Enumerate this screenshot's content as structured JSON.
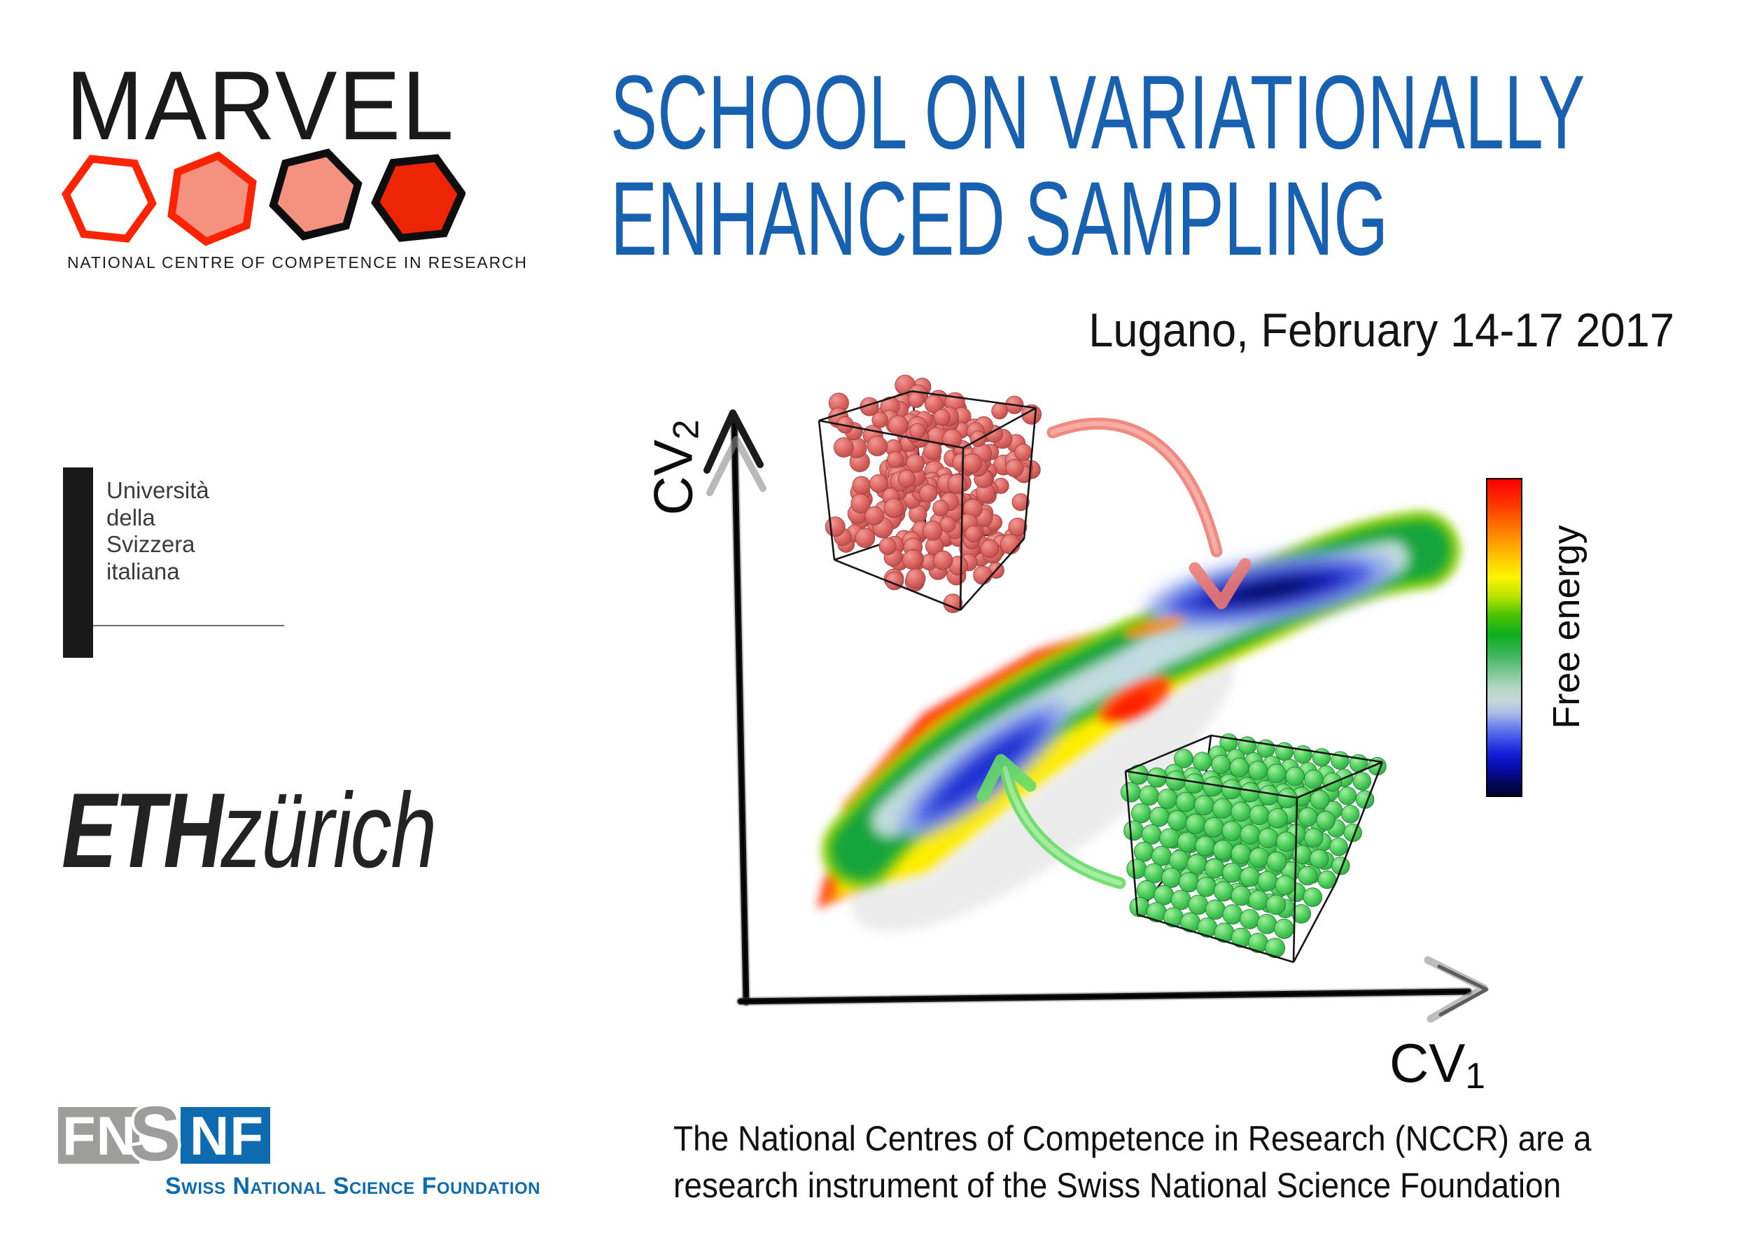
{
  "marvel": {
    "wordmark": "MARVEL",
    "caption": "NATIONAL CENTRE OF COMPETENCE IN RESEARCH",
    "hex_outline_red": "#fb2301",
    "hex_outline_black": "#0e0e0e",
    "hex_fill_white": "#ffffff",
    "hex_fill_salmon": "#f5917f",
    "hex_fill_red": "#ee2504"
  },
  "title": {
    "line1": "SCHOOL ON VARIATIONALLY",
    "line2": "ENHANCED SAMPLING",
    "color": "#1761b0"
  },
  "event": {
    "location_date": "Lugano, February 14-17 2017"
  },
  "usi": {
    "lines": [
      "Università",
      "della",
      "Svizzera",
      "italiana"
    ]
  },
  "eth": {
    "bold": "ETH",
    "light": "zürich"
  },
  "snsf": {
    "gray_letters": "FN",
    "overlap_letter": "S",
    "blue_letters": "NF",
    "name": "Swiss National Science Foundation",
    "blue": "#0f6bb0",
    "gray": "#9d9d9c"
  },
  "footnote": {
    "line1": "The National Centres of Competence in Research (NCCR) are a",
    "line2": "research instrument of the Swiss National Science Foundation"
  },
  "figure": {
    "y_label": "CV",
    "y_sub": "2",
    "x_label": "CV",
    "x_sub": "1",
    "colorbar_label": "Free energy",
    "box_wire": "#161616",
    "arrow_red": "#ef7b70",
    "arrow_green": "#67dc67",
    "red_sphere": {
      "light": "#f09a93",
      "base": "#dd6663",
      "dark": "#b24a48",
      "stroke": "#a03d3c"
    },
    "green_sphere": {
      "light": "#a5eda1",
      "base": "#4ccf5a",
      "dark": "#2f9f44",
      "stroke": "#1e7c30"
    }
  },
  "chart_data": {
    "type": "heatmap",
    "title": "Schematic free-energy surface in collective-variable space",
    "xlabel": "CV1",
    "ylabel": "CV2",
    "colorbar_label": "Free energy",
    "colorbar_scale_top_to_bottom": [
      "#ff0000",
      "#ff7b00",
      "#ffee00",
      "#22bb22",
      "#7cc893",
      "#c8d8da",
      "#4156e2",
      "#1b2ed0",
      "#04065e",
      "#02032e"
    ],
    "features": [
      "curved banana-shaped low-free-energy channel from lower-left to upper-right",
      "two elongated deep-blue minima connected through a pale saddle region",
      "high free energy (red/orange rim) along the outer boundary",
      "disordered red-sphere simulation box linked by red arrow to upper basin",
      "ordered green-sphere crystal box linked by green arrow to lower basin"
    ],
    "axes_ticks": "none (schematic, unlabeled axes)"
  }
}
